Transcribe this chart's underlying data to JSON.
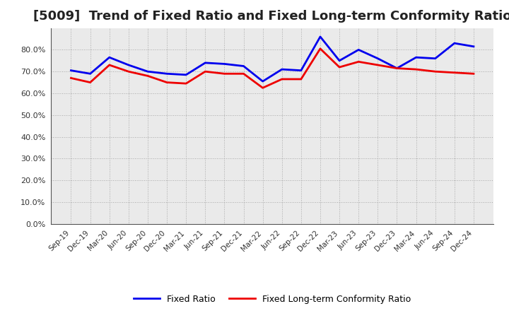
{
  "title": "[5009]  Trend of Fixed Ratio and Fixed Long-term Conformity Ratio",
  "x_labels": [
    "Sep-19",
    "Dec-19",
    "Mar-20",
    "Jun-20",
    "Sep-20",
    "Dec-20",
    "Mar-21",
    "Jun-21",
    "Sep-21",
    "Dec-21",
    "Mar-22",
    "Jun-22",
    "Sep-22",
    "Dec-22",
    "Mar-23",
    "Jun-23",
    "Sep-23",
    "Dec-23",
    "Mar-24",
    "Jun-24",
    "Sep-24",
    "Dec-24"
  ],
  "fixed_ratio": [
    70.5,
    69.0,
    76.5,
    73.0,
    70.0,
    69.0,
    68.5,
    74.0,
    73.5,
    72.5,
    65.5,
    71.0,
    70.5,
    86.0,
    75.0,
    80.0,
    76.0,
    71.5,
    76.5,
    76.0,
    83.0,
    81.5
  ],
  "fixed_lt_conformity": [
    67.0,
    65.0,
    73.0,
    70.0,
    68.0,
    65.0,
    64.5,
    70.0,
    69.0,
    69.0,
    62.5,
    66.5,
    66.5,
    80.5,
    72.0,
    74.5,
    73.0,
    71.5,
    71.0,
    70.0,
    69.5,
    69.0
  ],
  "fixed_ratio_color": "#0000EE",
  "fixed_lt_color": "#EE0000",
  "ylim_min": 0,
  "ylim_max": 90,
  "yticks": [
    0,
    10,
    20,
    30,
    40,
    50,
    60,
    70,
    80
  ],
  "plot_bg_color": "#EAEAEA",
  "fig_bg_color": "#FFFFFF",
  "grid_color": "#999999",
  "title_fontsize": 13,
  "legend_fixed_ratio": "Fixed Ratio",
  "legend_fixed_lt": "Fixed Long-term Conformity Ratio"
}
